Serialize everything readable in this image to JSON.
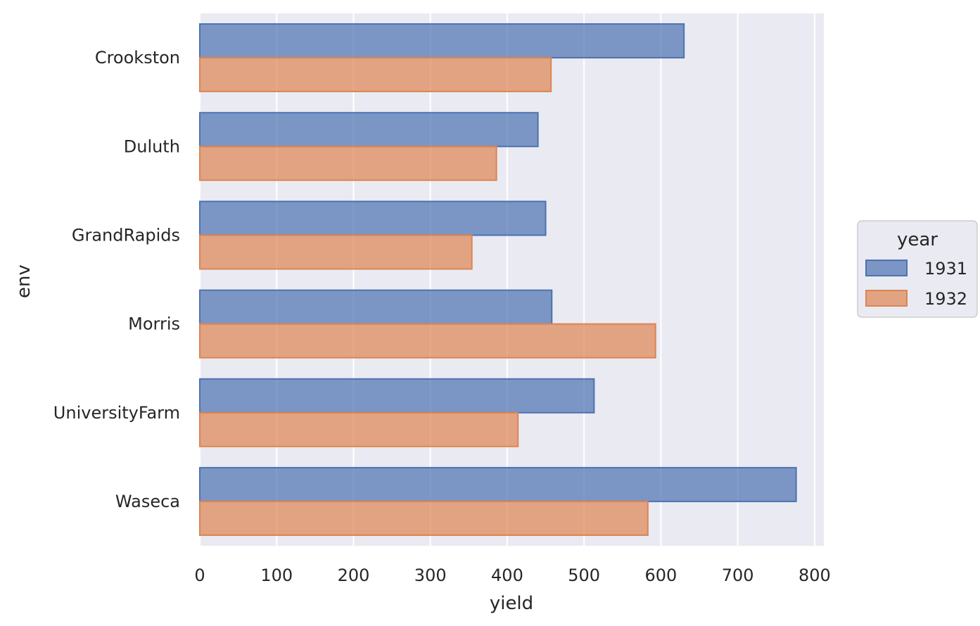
{
  "chart_data": {
    "type": "bar",
    "orientation": "horizontal",
    "categories": [
      "Crookston",
      "Duluth",
      "GrandRapids",
      "Morris",
      "UniversityFarm",
      "Waseca"
    ],
    "series": [
      {
        "name": "1931",
        "values": [
          630,
          440,
          450,
          458,
          513,
          776
        ],
        "color": "#4c72b0"
      },
      {
        "name": "1932",
        "values": [
          457,
          386,
          354,
          593,
          414,
          583
        ],
        "color": "#dd8452"
      }
    ],
    "title": "",
    "xlabel": "yield",
    "ylabel": "env",
    "xlim": [
      0,
      812
    ],
    "xticks": [
      0,
      100,
      200,
      300,
      400,
      500,
      600,
      700,
      800
    ],
    "grid": true,
    "legend_title": "year",
    "legend_position": "right",
    "background_color": "#eaeaf2"
  }
}
